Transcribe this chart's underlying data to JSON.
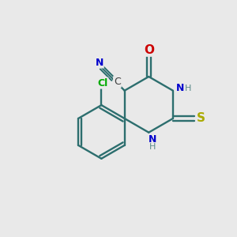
{
  "background_color": "#e9e9e9",
  "atom_colors": {
    "C": "#3a3a3a",
    "N": "#0000cc",
    "O": "#cc0000",
    "S": "#aaaa00",
    "Cl": "#00aa00",
    "H": "#5a8a8a",
    "bond": "#2c6e6e"
  },
  "line_width": 1.7
}
